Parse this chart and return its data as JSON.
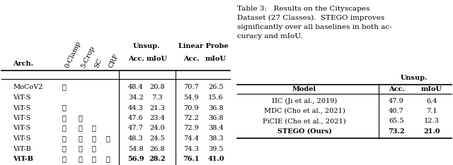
{
  "left_table": {
    "rotated_headers": [
      "0-Clamp",
      "5-Crop",
      "SC",
      "CRF"
    ],
    "rows": [
      {
        "arch": "MoCoV2",
        "checks": [
          true,
          false,
          false,
          false
        ],
        "unsup_acc": "48.4",
        "unsup_miou": "20.8",
        "lp_acc": "70.7",
        "lp_miou": "26.5",
        "bold": false
      },
      {
        "arch": "ViT-S",
        "checks": [
          false,
          false,
          false,
          false
        ],
        "unsup_acc": "34.2",
        "unsup_miou": "7.3",
        "lp_acc": "54.9",
        "lp_miou": "15.6",
        "bold": false
      },
      {
        "arch": "ViT-S",
        "checks": [
          true,
          false,
          false,
          false
        ],
        "unsup_acc": "44.3",
        "unsup_miou": "21.3",
        "lp_acc": "70.9",
        "lp_miou": "36.8",
        "bold": false
      },
      {
        "arch": "ViT-S",
        "checks": [
          true,
          true,
          false,
          false
        ],
        "unsup_acc": "47.6",
        "unsup_miou": "23.4",
        "lp_acc": "72.2",
        "lp_miou": "36.8",
        "bold": false
      },
      {
        "arch": "ViT-S",
        "checks": [
          true,
          true,
          true,
          false
        ],
        "unsup_acc": "47.7",
        "unsup_miou": "24.0",
        "lp_acc": "72.9",
        "lp_miou": "38.4",
        "bold": false
      },
      {
        "arch": "ViT-S",
        "checks": [
          true,
          true,
          true,
          true
        ],
        "unsup_acc": "48.3",
        "unsup_miou": "24.5",
        "lp_acc": "74.4",
        "lp_miou": "38.3",
        "bold": false
      },
      {
        "arch": "ViT-B",
        "checks": [
          true,
          true,
          true,
          false
        ],
        "unsup_acc": "54.8",
        "unsup_miou": "26.8",
        "lp_acc": "74.3",
        "lp_miou": "39.5",
        "bold": false
      },
      {
        "arch": "ViT-B",
        "checks": [
          true,
          true,
          true,
          true
        ],
        "unsup_acc": "56.9",
        "unsup_miou": "28.2",
        "lp_acc": "76.1",
        "lp_miou": "41.0",
        "bold": true
      }
    ]
  },
  "right_table": {
    "caption_line1": "Table 3:   Results on the Cityscapes",
    "caption_line2": "Dataset (27 Classes).  STEGO improves",
    "caption_line3": "significantly over all baselines in both ac-",
    "caption_line4": "curacy and mIoU.",
    "rows": [
      {
        "model": "IIC (Ji et al., 2019)",
        "acc": "47.9",
        "miou": "6.4",
        "bold": false
      },
      {
        "model": "MDC (Cho et al., 2021)",
        "acc": "40.7",
        "miou": "7.1",
        "bold": false
      },
      {
        "model": "PiCIE (Cho et al., 2021)",
        "acc": "65.5",
        "miou": "12.3",
        "bold": false
      },
      {
        "model": "STEGO (Ours)",
        "acc": "73.2",
        "miou": "21.0",
        "bold": true
      }
    ]
  },
  "checkmark": "✓",
  "fontsize": 7.0,
  "caption_fontsize": 7.5
}
